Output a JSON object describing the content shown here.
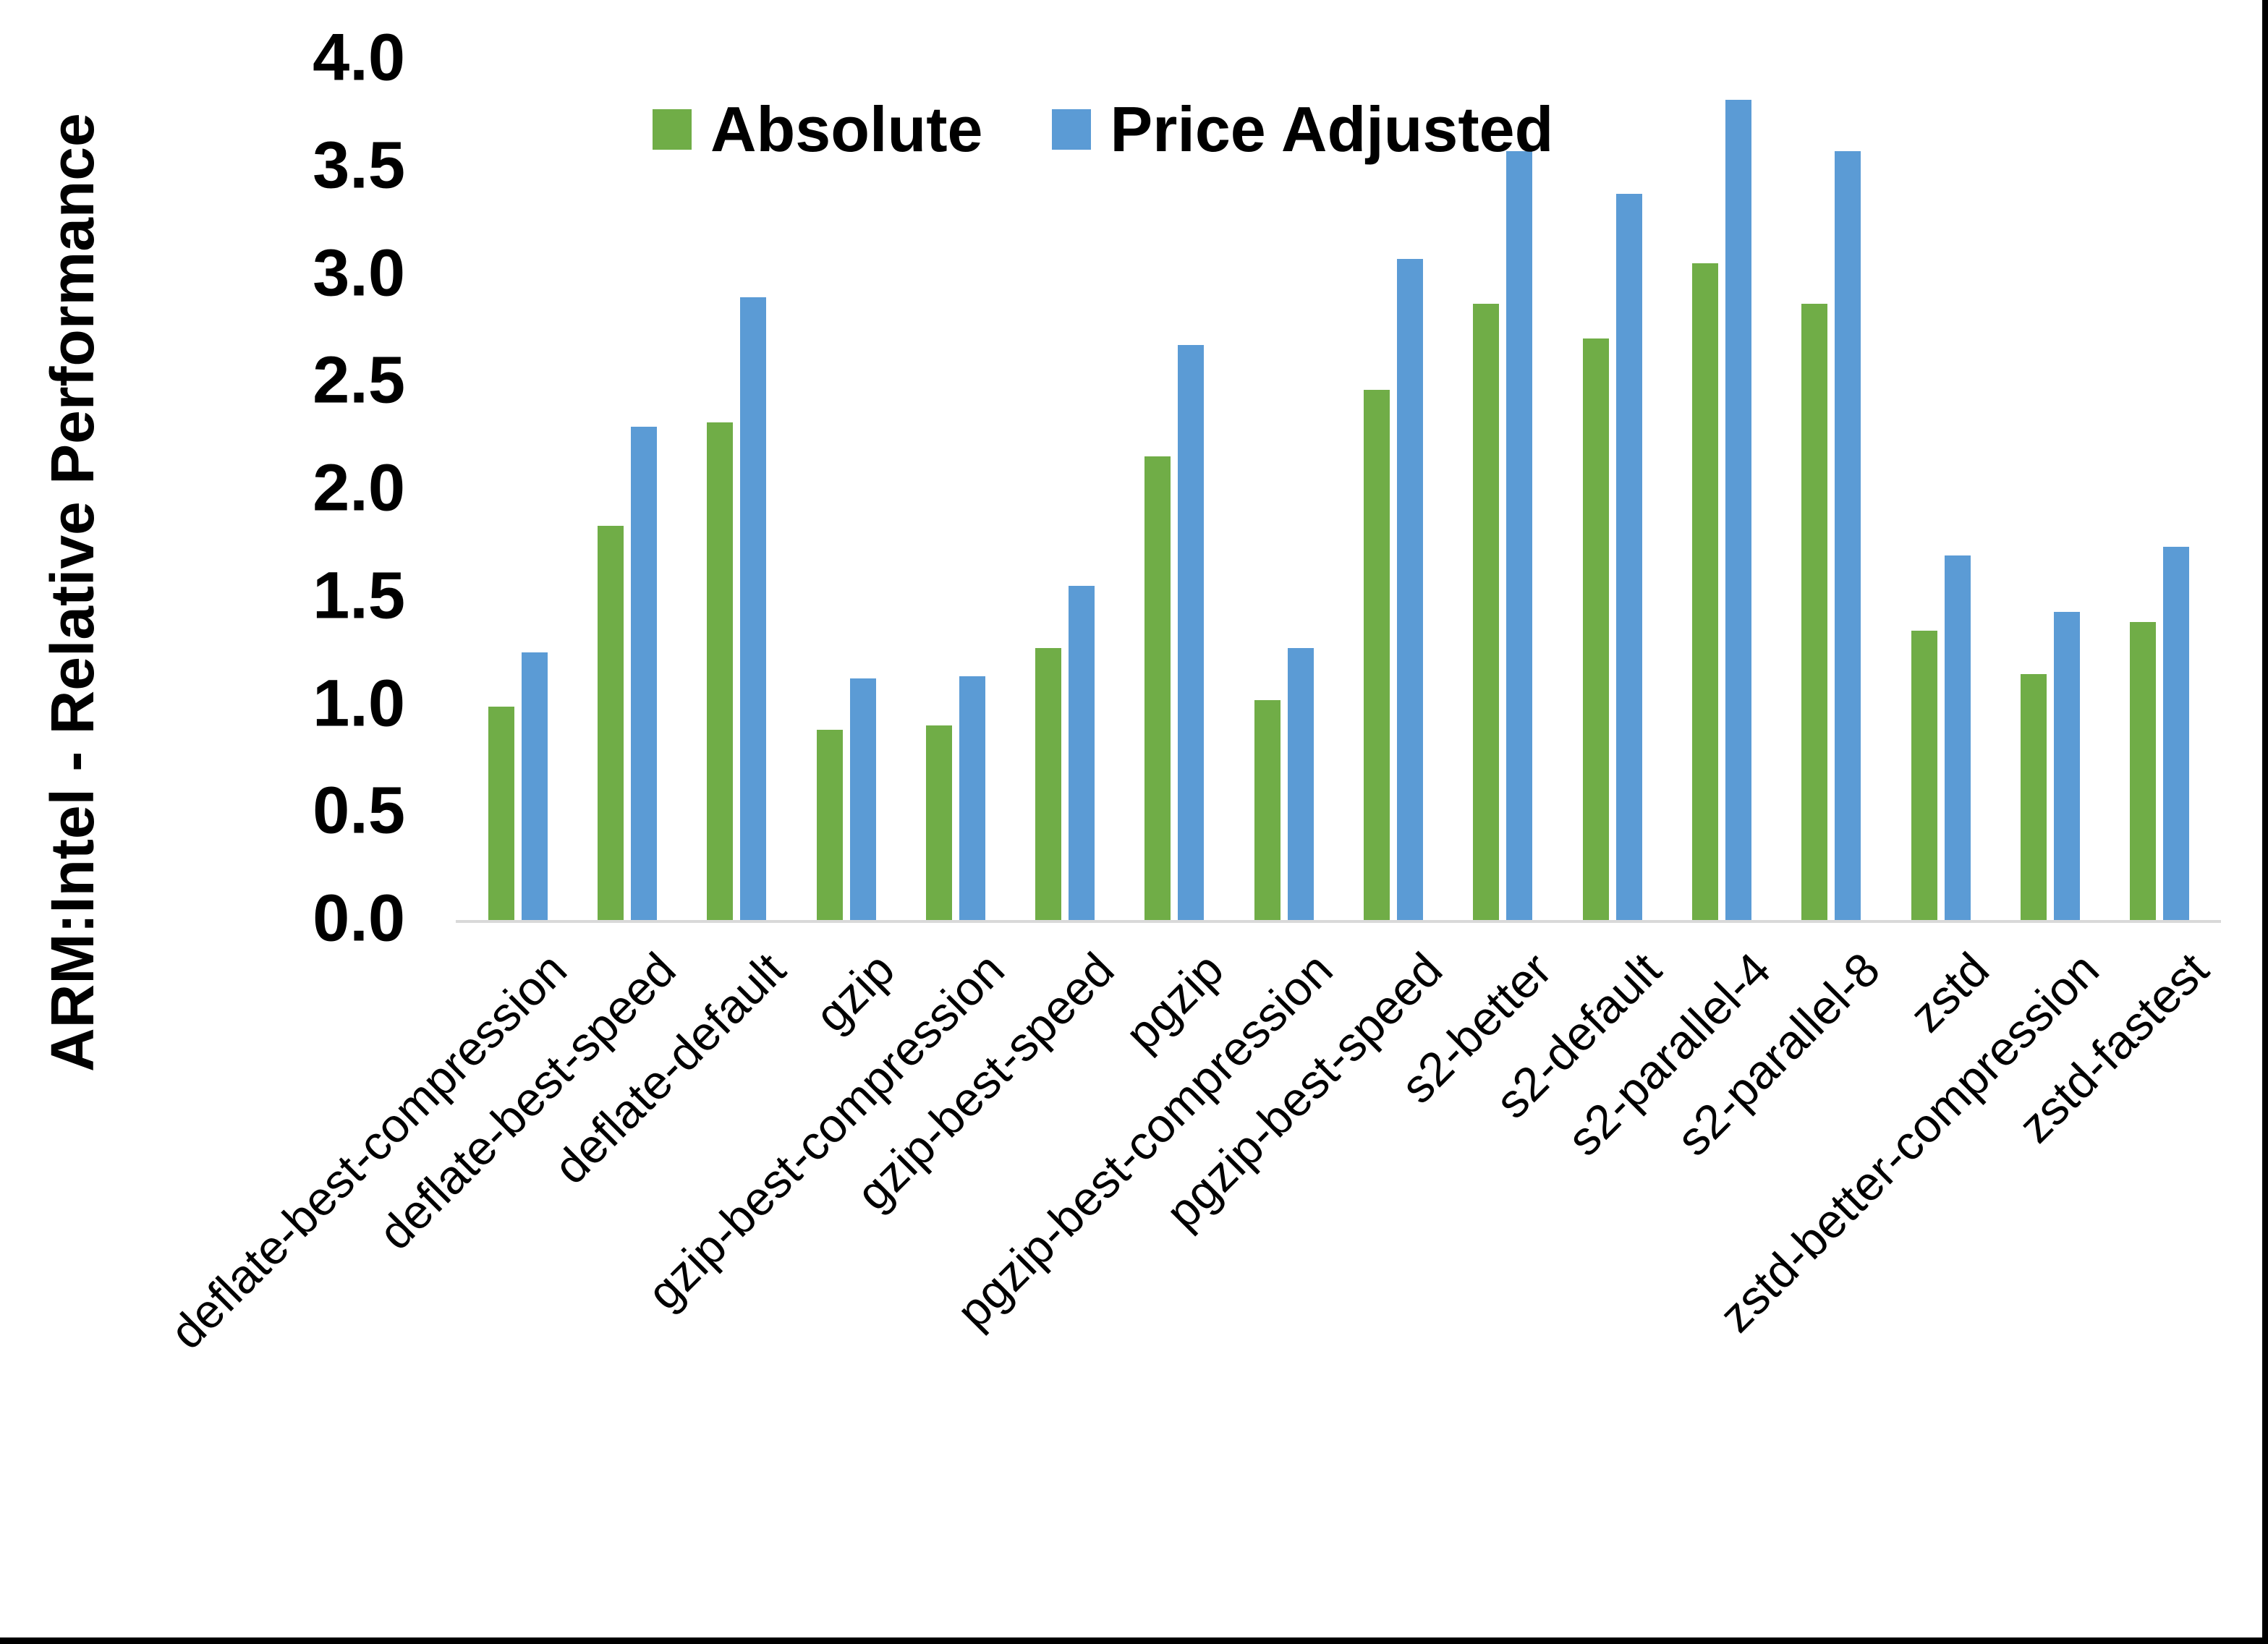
{
  "chart_data": {
    "type": "bar",
    "title": "",
    "xlabel": "",
    "ylabel": "ARM:Intel - Relative Performance",
    "ylim": [
      0.0,
      4.0
    ],
    "ytick_labels": [
      "0.0",
      "0.5",
      "1.0",
      "1.5",
      "2.0",
      "2.5",
      "3.0",
      "3.5",
      "4.0"
    ],
    "grid": false,
    "legend_position": "top-center",
    "axis_line_color": "#d9d9d9",
    "categories": [
      "deflate-best-compression",
      "deflate-best-speed",
      "deflate-default",
      "gzip",
      "gzip-best-compression",
      "gzip-best-speed",
      "pgzip",
      "pgzip-best-compression",
      "pgzip-best-speed",
      "s2-better",
      "s2-default",
      "s2-parallel-4",
      "s2-parallel-8",
      "zstd",
      "zstd-better-compression",
      "zstd-fastest"
    ],
    "series": [
      {
        "name": "Absolute",
        "color": "#70ad47",
        "values": [
          1.0,
          1.84,
          2.32,
          0.89,
          0.91,
          1.27,
          2.16,
          1.03,
          2.47,
          2.87,
          2.71,
          3.06,
          2.87,
          1.35,
          1.15,
          1.39
        ]
      },
      {
        "name": "Price Adjusted",
        "color": "#5b9bd5",
        "values": [
          1.25,
          2.3,
          2.9,
          1.13,
          1.14,
          1.56,
          2.68,
          1.27,
          3.08,
          3.58,
          3.38,
          3.82,
          3.58,
          1.7,
          1.44,
          1.74
        ]
      }
    ]
  },
  "frame": {
    "right_border_color": "#000000",
    "bottom_border_color": "#000000"
  }
}
